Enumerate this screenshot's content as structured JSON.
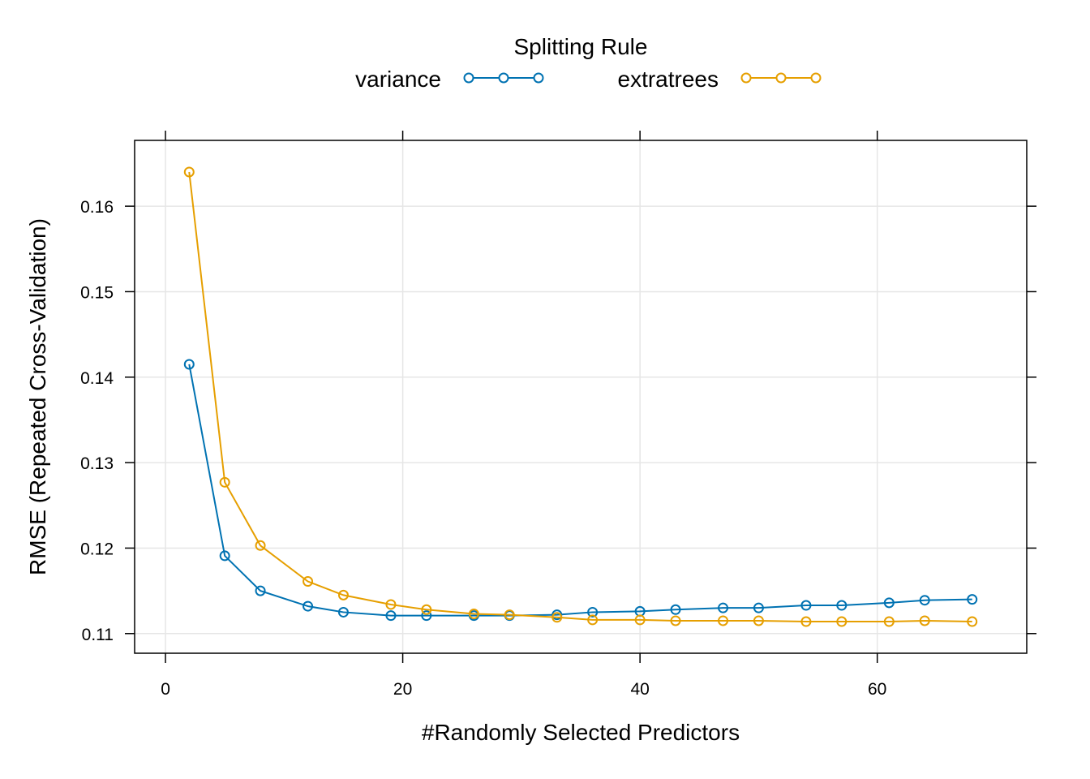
{
  "chart_data": {
    "type": "line",
    "title": "",
    "xlabel": "#Randomly Selected Predictors",
    "ylabel": "RMSE (Repeated Cross-Validation)",
    "xlim": [
      -2.6,
      72.6
    ],
    "ylim": [
      0.1077,
      0.1677
    ],
    "x_ticks": [
      0,
      20,
      40,
      60
    ],
    "y_ticks": [
      0.11,
      0.12,
      0.13,
      0.14,
      0.15,
      0.16
    ],
    "x_tick_labels": [
      "0",
      "20",
      "40",
      "60"
    ],
    "y_tick_labels": [
      "0.11",
      "0.12",
      "0.13",
      "0.14",
      "0.15",
      "0.16"
    ],
    "grid": true,
    "legend": {
      "title": "Splitting Rule",
      "placement": "top"
    },
    "x": [
      2,
      5,
      8,
      12,
      15,
      19,
      22,
      26,
      29,
      33,
      36,
      40,
      43,
      47,
      50,
      54,
      57,
      61,
      64,
      68
    ],
    "series": [
      {
        "name": "variance",
        "color": "#0072B2",
        "values": [
          0.1415,
          0.1191,
          0.115,
          0.1132,
          0.1125,
          0.1121,
          0.1121,
          0.1121,
          0.1121,
          0.1122,
          0.1125,
          0.1126,
          0.1128,
          0.113,
          0.113,
          0.1133,
          0.1133,
          0.1136,
          0.1139,
          0.114
        ]
      },
      {
        "name": "extratrees",
        "color": "#E69F00",
        "values": [
          0.164,
          0.1277,
          0.1203,
          0.1161,
          0.1145,
          0.1134,
          0.1128,
          0.1123,
          0.1122,
          0.1119,
          0.1116,
          0.1116,
          0.1115,
          0.1115,
          0.1115,
          0.1114,
          0.1114,
          0.1114,
          0.1115,
          0.1114
        ]
      }
    ]
  }
}
